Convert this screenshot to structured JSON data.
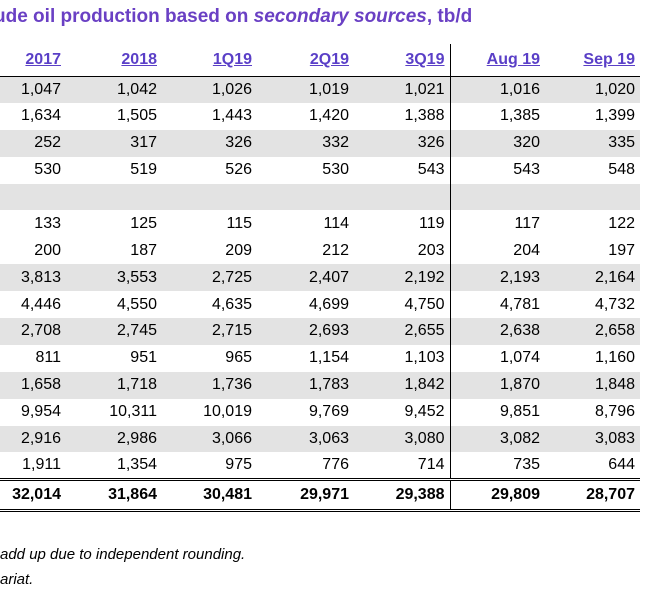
{
  "title_plain": "ude oil production based on ",
  "title_italic": "secondary sources",
  "title_suffix": ", tb/d",
  "columns": [
    "2017",
    "2018",
    "1Q19",
    "2Q19",
    "3Q19",
    "Aug 19",
    "Sep 19"
  ],
  "rows": [
    [
      "1,047",
      "1,042",
      "1,026",
      "1,019",
      "1,021",
      "1,016",
      "1,020"
    ],
    [
      "1,634",
      "1,505",
      "1,443",
      "1,420",
      "1,388",
      "1,385",
      "1,399"
    ],
    [
      "252",
      "317",
      "326",
      "332",
      "326",
      "320",
      "335"
    ],
    [
      "530",
      "519",
      "526",
      "530",
      "543",
      "543",
      "548"
    ],
    [
      "",
      "",
      "",
      "",
      "",
      "",
      ""
    ],
    [
      "133",
      "125",
      "115",
      "114",
      "119",
      "117",
      "122"
    ],
    [
      "200",
      "187",
      "209",
      "212",
      "203",
      "204",
      "197"
    ],
    [
      "3,813",
      "3,553",
      "2,725",
      "2,407",
      "2,192",
      "2,193",
      "2,164"
    ],
    [
      "4,446",
      "4,550",
      "4,635",
      "4,699",
      "4,750",
      "4,781",
      "4,732"
    ],
    [
      "2,708",
      "2,745",
      "2,715",
      "2,693",
      "2,655",
      "2,638",
      "2,658"
    ],
    [
      "811",
      "951",
      "965",
      "1,154",
      "1,103",
      "1,074",
      "1,160"
    ],
    [
      "1,658",
      "1,718",
      "1,736",
      "1,783",
      "1,842",
      "1,870",
      "1,848"
    ],
    [
      "9,954",
      "10,311",
      "10,019",
      "9,769",
      "9,452",
      "9,851",
      "8,796"
    ],
    [
      "2,916",
      "2,986",
      "3,066",
      "3,063",
      "3,080",
      "3,082",
      "3,083"
    ],
    [
      "1,911",
      "1,354",
      "975",
      "776",
      "714",
      "735",
      "644"
    ]
  ],
  "total": [
    "32,014",
    "31,864",
    "30,481",
    "29,971",
    "29,388",
    "29,809",
    "28,707"
  ],
  "notes": [
    "add up due to independent rounding.",
    "ariat."
  ],
  "colors": {
    "title": "#6a40c4",
    "header": "#5a3fc7",
    "shade": "#e3e3e3"
  }
}
